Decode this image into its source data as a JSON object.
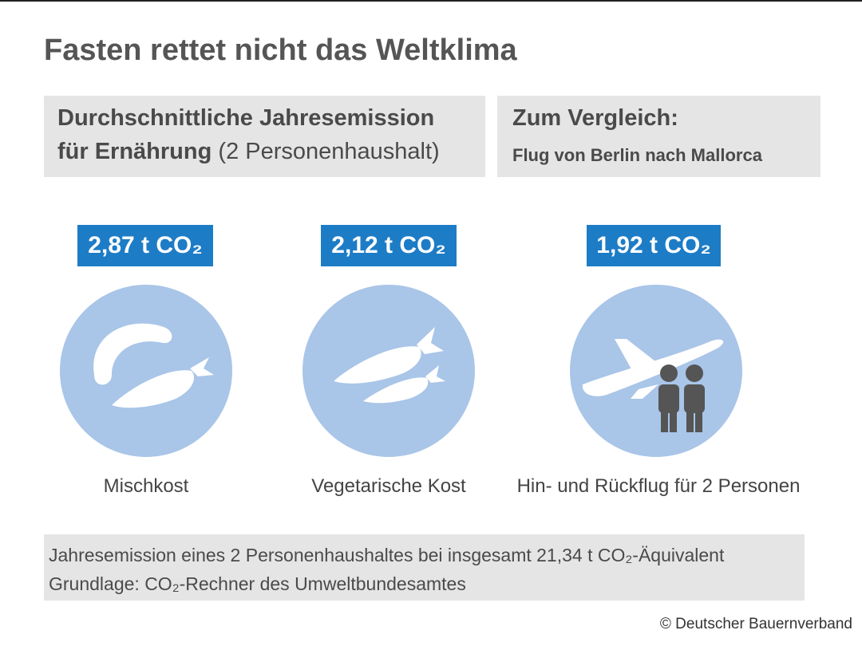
{
  "header": {
    "title": "Fasten rettet nicht das Weltklima"
  },
  "panels": [
    {
      "line1": "Durchschnittliche Jahresemission",
      "line2_bold": "für Ernährung",
      "line2_regular": "(2 Personenhaushalt)"
    },
    {
      "line1": "Zum Vergleich:",
      "line2_bold": "Flug von Berlin nach Mallorca"
    }
  ],
  "items": [
    {
      "value_label": "2,87 t CO₂",
      "caption": "Mischkost"
    },
    {
      "value_label": "2,12 t CO₂",
      "caption": "Vegetarische Kost"
    },
    {
      "value_label": "1,92 t CO₂",
      "caption": "Hin- und Rückflug für 2 Personen"
    }
  ],
  "footer": {
    "lines": [
      "Jahresemission eines 2 Personenhaushaltes bei insgesamt 21,34 t CO₂-Äquivalent",
      "Grundlage: CO₂-Rechner des Umweltbundesamtes"
    ]
  },
  "copyright": "© Deutscher Bauernverband"
}
